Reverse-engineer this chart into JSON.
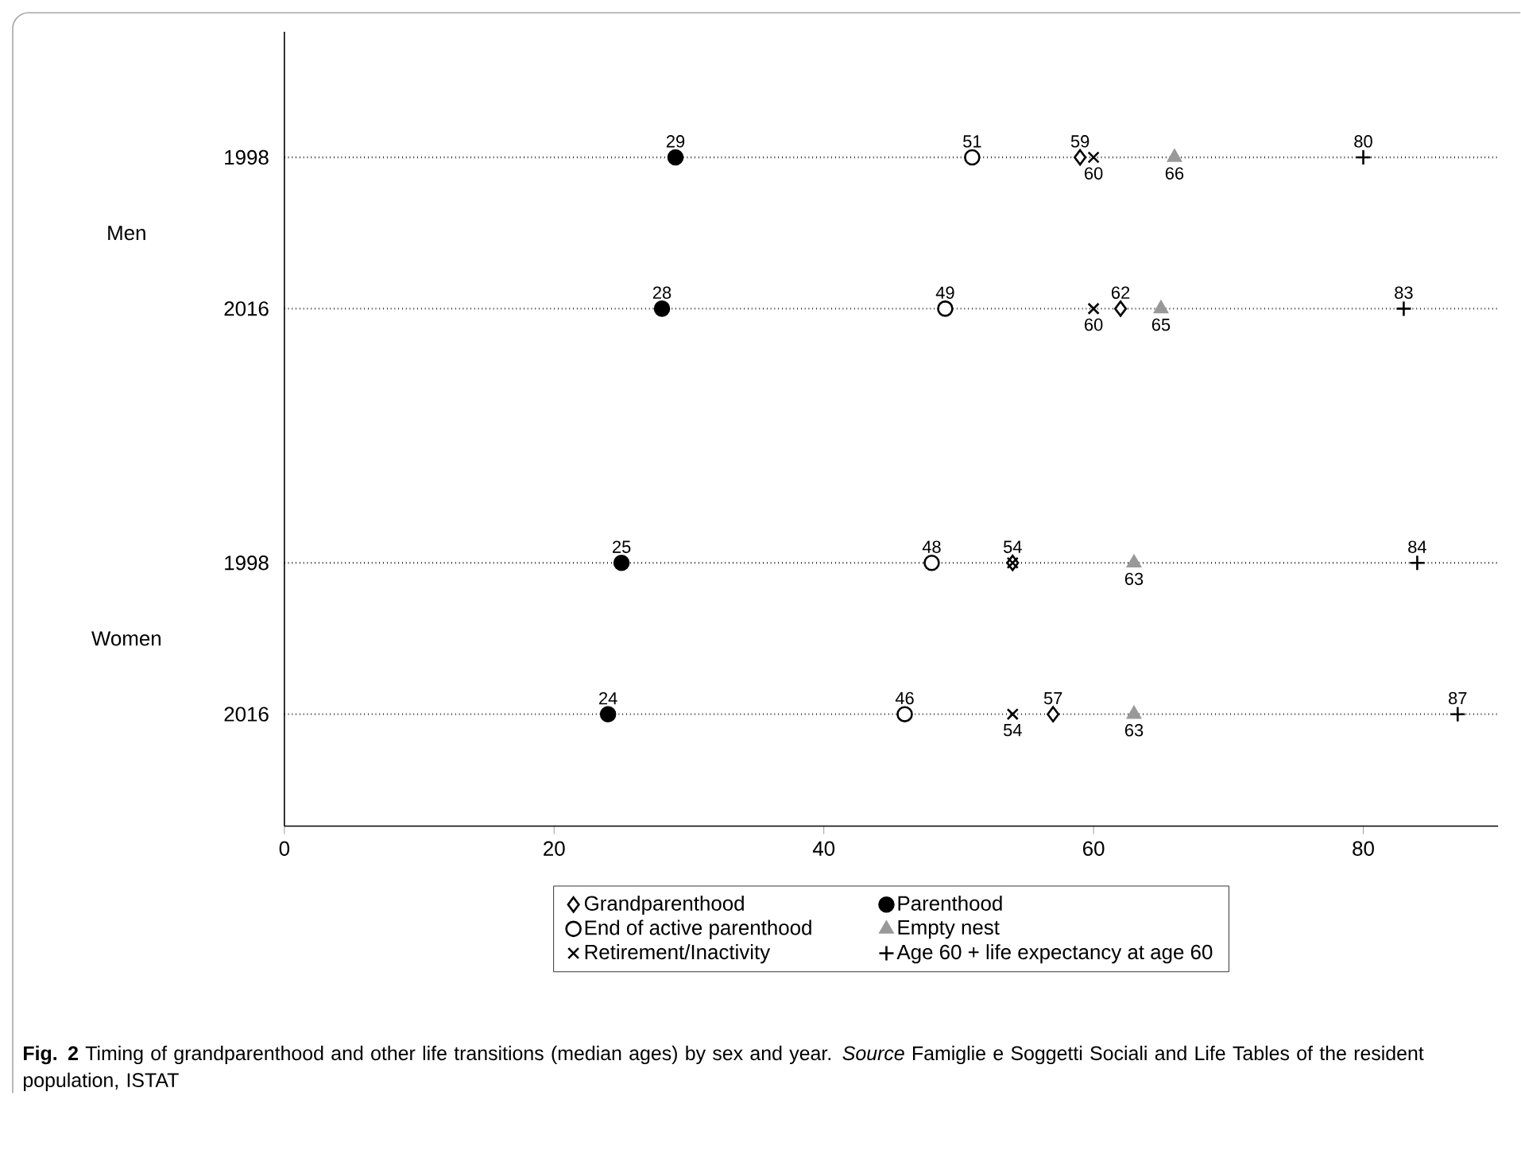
{
  "chart_data": {
    "type": "scatter",
    "orientation": "horizontal",
    "categories": [
      "1998",
      "2016",
      "1998",
      "2016"
    ],
    "xlim": [
      0,
      90
    ],
    "xticks": [
      0,
      20,
      40,
      60,
      80
    ],
    "grid": "y",
    "legend": "bottom",
    "series": [
      {
        "name": "Grandparenthood",
        "color": "#000000",
        "marker": "diamond-open",
        "values": [
          59,
          62,
          54,
          57
        ],
        "value_labels": [
          "59",
          "62",
          "54",
          "57"
        ]
      },
      {
        "name": "Parenthood",
        "color": "#000000",
        "marker": "circle",
        "values": [
          29,
          28,
          25,
          24
        ],
        "value_labels": [
          "29",
          "28",
          "25",
          "24"
        ]
      },
      {
        "name": "End of active parenthood",
        "color": "#000000",
        "marker": "circle-open",
        "values": [
          51,
          49,
          48,
          46
        ],
        "value_labels": [
          "51",
          "49",
          "48",
          "46"
        ]
      },
      {
        "name": "Empty nest",
        "color": "#999999",
        "marker": "triangle",
        "values": [
          66,
          65,
          63,
          63
        ],
        "value_labels": [
          "66",
          "65",
          "63",
          "63"
        ]
      },
      {
        "name": "Retirement/Inactivity",
        "color": "#000000",
        "marker": "cross",
        "values": [
          60,
          60,
          54,
          54
        ],
        "value_labels": [
          "60",
          "60",
          null,
          "54"
        ]
      },
      {
        "name": "Age 60 + life expectancy at age 60",
        "color": "#000000",
        "marker": "plus",
        "values": [
          80,
          83,
          84,
          87
        ],
        "value_labels": [
          "80",
          "83",
          "84",
          "87"
        ]
      }
    ],
    "annotations": [
      "Men",
      "Women",
      "**Fig. 2** Timing of grandparenthood and other life transitions (median ages) by sex and year. *Source* Famiglie e Soggetti Sociali and Life Tables of the resident population, ISTAT"
    ]
  }
}
